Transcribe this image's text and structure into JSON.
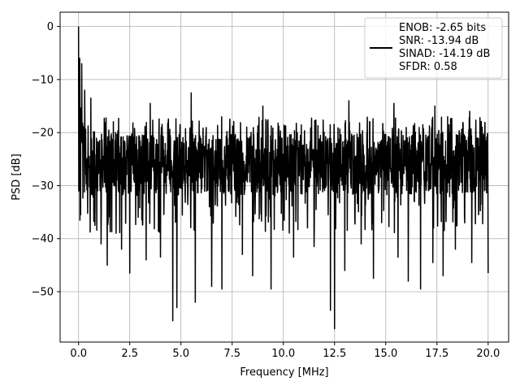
{
  "chart_data": {
    "type": "line",
    "xlabel": "Frequency [MHz]",
    "ylabel": "PSD [dB]",
    "xlim": [
      -0.9,
      21.0
    ],
    "ylim": [
      -59.5,
      2.7
    ],
    "xticks": [
      0.0,
      2.5,
      5.0,
      7.5,
      10.0,
      12.5,
      15.0,
      17.5,
      20.0
    ],
    "xtick_labels": [
      "0.0",
      "2.5",
      "5.0",
      "7.5",
      "10.0",
      "12.5",
      "15.0",
      "17.5",
      "20.0"
    ],
    "yticks": [
      0,
      -10,
      -20,
      -30,
      -40,
      -50
    ],
    "ytick_labels": [
      "0",
      "−10",
      "−20",
      "−30",
      "−40",
      "−50"
    ],
    "grid": true,
    "legend_position": "top-right",
    "series": [
      {
        "color": "#000000",
        "x_start": 0.0,
        "x_end": 20.0,
        "band_top_db": -21.0,
        "band_bottom_db": -31.0,
        "peak_x": 0.0,
        "peak_db": 0.0,
        "deep_minima": [
          {
            "x": 0.1,
            "y": -35.5
          },
          {
            "x": 0.8,
            "y": -37.5
          },
          {
            "x": 1.1,
            "y": -41.0
          },
          {
            "x": 1.4,
            "y": -45.0
          },
          {
            "x": 2.1,
            "y": -42.0
          },
          {
            "x": 2.5,
            "y": -46.5
          },
          {
            "x": 3.3,
            "y": -44.0
          },
          {
            "x": 4.0,
            "y": -43.5
          },
          {
            "x": 4.6,
            "y": -55.5
          },
          {
            "x": 4.8,
            "y": -53.0
          },
          {
            "x": 5.7,
            "y": -52.0
          },
          {
            "x": 6.5,
            "y": -49.0
          },
          {
            "x": 7.0,
            "y": -49.5
          },
          {
            "x": 8.0,
            "y": -43.0
          },
          {
            "x": 8.5,
            "y": -47.0
          },
          {
            "x": 9.4,
            "y": -49.5
          },
          {
            "x": 10.5,
            "y": -43.5
          },
          {
            "x": 11.5,
            "y": -41.5
          },
          {
            "x": 12.3,
            "y": -53.5
          },
          {
            "x": 12.5,
            "y": -57.0
          },
          {
            "x": 13.0,
            "y": -46.0
          },
          {
            "x": 13.8,
            "y": -41.0
          },
          {
            "x": 14.4,
            "y": -47.5
          },
          {
            "x": 15.6,
            "y": -43.5
          },
          {
            "x": 16.1,
            "y": -48.0
          },
          {
            "x": 16.7,
            "y": -49.5
          },
          {
            "x": 17.3,
            "y": -44.5
          },
          {
            "x": 17.8,
            "y": -47.0
          },
          {
            "x": 18.4,
            "y": -42.0
          },
          {
            "x": 19.2,
            "y": -44.5
          },
          {
            "x": 20.0,
            "y": -46.5
          }
        ],
        "high_peaks": [
          {
            "x": 0.05,
            "y": -6.0
          },
          {
            "x": 0.15,
            "y": -7.0
          },
          {
            "x": 0.3,
            "y": -12.0
          },
          {
            "x": 0.6,
            "y": -13.5
          },
          {
            "x": 1.1,
            "y": -14.0
          },
          {
            "x": 3.5,
            "y": -14.5
          },
          {
            "x": 5.5,
            "y": -12.5
          },
          {
            "x": 9.0,
            "y": -15.0
          },
          {
            "x": 13.2,
            "y": -14.0
          },
          {
            "x": 15.4,
            "y": -14.5
          },
          {
            "x": 17.4,
            "y": -15.0
          },
          {
            "x": 19.1,
            "y": -16.0
          }
        ]
      }
    ]
  },
  "legend": {
    "lines": [
      "ENOB: -2.65 bits",
      "SNR: -13.94 dB",
      "SINAD: -14.19 dB",
      "SFDR: 0.58"
    ]
  }
}
